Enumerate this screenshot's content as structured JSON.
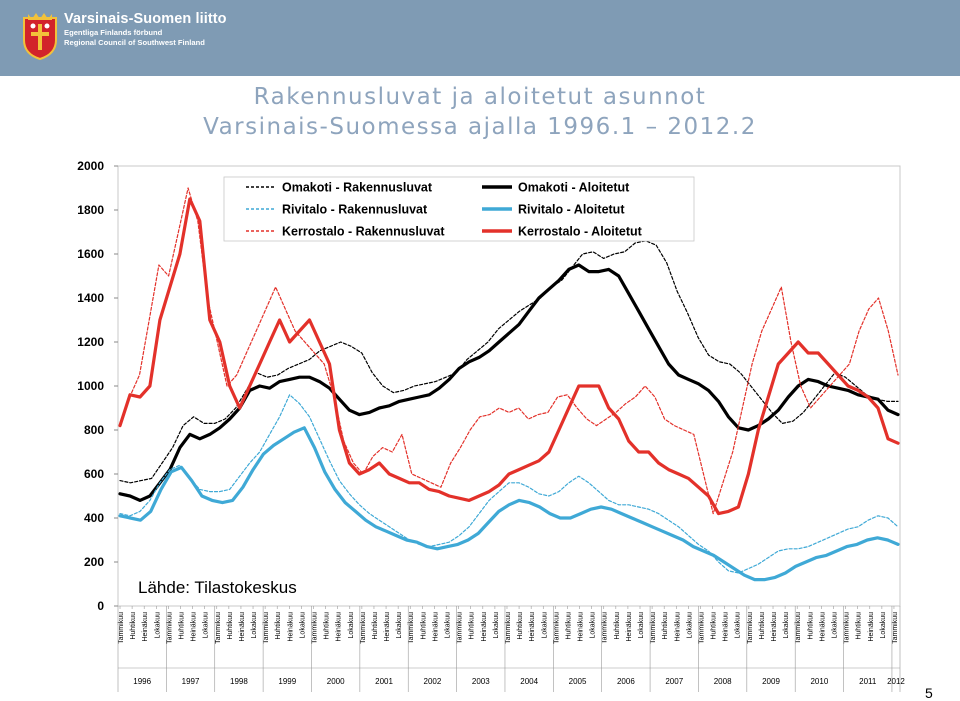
{
  "header": {
    "org_name": "Varsinais-Suomen liitto",
    "org_name_sv": "Egentliga Finlands förbund",
    "org_name_en": "Regional Council of Southwest Finland",
    "bar_color": "#7f9bb4",
    "logo_icon": "coat-of-arms-icon"
  },
  "slide": {
    "title_line1": "Rakennusluvat ja aloitetut asunnot",
    "title_line2": "Varsinais-Suomessa ajalla 1996.1 – 2012.2",
    "title_color": "#8ea4bd",
    "source_note": "Lähde: Tilastokeskus",
    "page_number": "5"
  },
  "chart_data": {
    "type": "line",
    "ylim": [
      0,
      2000
    ],
    "y_ticks": [
      "0",
      "200",
      "400",
      "600",
      "800",
      "1000",
      "1200",
      "1400",
      "1600",
      "1800",
      "2000"
    ],
    "grid": false,
    "legend_position": "top",
    "month_tick_labels": [
      "Tammikuu",
      "Huhtikuu",
      "Heinäkuu",
      "Lokakuu"
    ],
    "years": [
      "1996",
      "1997",
      "1998",
      "1999",
      "2000",
      "2001",
      "2002",
      "2003",
      "2004",
      "2005",
      "2006",
      "2007",
      "2008",
      "2009",
      "2010",
      "2011",
      "2012"
    ],
    "x_start": "1996-01",
    "x_end": "2012-02",
    "series": [
      {
        "name": "Omakoti - Rakennusluvat",
        "color": "#000000",
        "style": "dashed",
        "values": [
          570,
          560,
          570,
          580,
          650,
          720,
          820,
          860,
          830,
          830,
          850,
          900,
          980,
          1060,
          1040,
          1050,
          1080,
          1100,
          1120,
          1160,
          1180,
          1200,
          1180,
          1150,
          1060,
          1000,
          970,
          980,
          1000,
          1010,
          1020,
          1040,
          1060,
          1120,
          1160,
          1200,
          1260,
          1300,
          1340,
          1370,
          1400,
          1450,
          1480,
          1540,
          1600,
          1610,
          1580,
          1600,
          1610,
          1650,
          1660,
          1640,
          1560,
          1430,
          1330,
          1220,
          1140,
          1110,
          1100,
          1060,
          1000,
          940,
          880,
          830,
          840,
          880,
          940,
          1000,
          1060,
          1040,
          1000,
          960,
          940,
          930,
          930
        ]
      },
      {
        "name": "Omakoti - Aloitetut",
        "color": "#000000",
        "style": "solid",
        "values": [
          510,
          500,
          480,
          500,
          560,
          620,
          720,
          780,
          760,
          780,
          810,
          850,
          900,
          980,
          1000,
          990,
          1020,
          1030,
          1040,
          1040,
          1020,
          990,
          940,
          890,
          870,
          880,
          900,
          910,
          930,
          940,
          950,
          960,
          990,
          1030,
          1080,
          1110,
          1130,
          1160,
          1200,
          1240,
          1280,
          1340,
          1400,
          1440,
          1480,
          1530,
          1550,
          1520,
          1520,
          1530,
          1500,
          1420,
          1340,
          1260,
          1180,
          1100,
          1050,
          1030,
          1010,
          980,
          930,
          860,
          810,
          800,
          820,
          850,
          890,
          950,
          1000,
          1030,
          1020,
          1000,
          990,
          980,
          960,
          950,
          940,
          890,
          870
        ]
      },
      {
        "name": "Rivitalo - Rakennusluvat",
        "color": "#3fa9d6",
        "style": "dashed",
        "values": [
          420,
          410,
          430,
          480,
          560,
          620,
          640,
          580,
          530,
          520,
          520,
          530,
          590,
          650,
          700,
          780,
          860,
          960,
          920,
          860,
          760,
          660,
          570,
          510,
          460,
          420,
          390,
          360,
          330,
          300,
          280,
          270,
          280,
          290,
          320,
          360,
          420,
          480,
          520,
          560,
          560,
          540,
          510,
          500,
          520,
          560,
          590,
          560,
          520,
          480,
          460,
          460,
          450,
          440,
          420,
          390,
          360,
          320,
          280,
          250,
          200,
          160,
          150,
          170,
          190,
          220,
          250,
          260,
          260,
          270,
          290,
          310,
          330,
          350,
          360,
          390,
          410,
          400,
          360
        ]
      },
      {
        "name": "Rivitalo - Aloitetut",
        "color": "#3fa9d6",
        "style": "solid",
        "values": [
          410,
          400,
          390,
          430,
          530,
          610,
          630,
          570,
          500,
          480,
          470,
          480,
          540,
          620,
          690,
          730,
          760,
          790,
          810,
          720,
          610,
          530,
          470,
          430,
          390,
          360,
          340,
          320,
          300,
          290,
          270,
          260,
          270,
          280,
          300,
          330,
          380,
          430,
          460,
          480,
          470,
          450,
          420,
          400,
          400,
          420,
          440,
          450,
          440,
          420,
          400,
          380,
          360,
          340,
          320,
          300,
          270,
          250,
          230,
          200,
          170,
          140,
          120,
          120,
          130,
          150,
          180,
          200,
          220,
          230,
          250,
          270,
          280,
          300,
          310,
          300,
          280
        ]
      },
      {
        "name": "Kerrostalo - Rakennusluvat",
        "color": "#e3312a",
        "style": "dashed",
        "values": [
          820,
          950,
          1050,
          1300,
          1550,
          1500,
          1700,
          1900,
          1750,
          1400,
          1200,
          1000,
          1050,
          1150,
          1250,
          1350,
          1450,
          1350,
          1250,
          1200,
          1150,
          1100,
          950,
          750,
          650,
          600,
          680,
          720,
          700,
          780,
          600,
          580,
          560,
          540,
          650,
          720,
          800,
          860,
          870,
          900,
          880,
          900,
          850,
          870,
          880,
          950,
          960,
          900,
          850,
          820,
          850,
          880,
          920,
          950,
          1000,
          950,
          850,
          820,
          800,
          780,
          600,
          420,
          560,
          700,
          900,
          1100,
          1250,
          1350,
          1450,
          1200,
          1000,
          900,
          950,
          1000,
          1050,
          1100,
          1250,
          1350,
          1400,
          1250,
          1050
        ]
      },
      {
        "name": "Kerrostalo - Aloitetut",
        "color": "#e3312a",
        "style": "solid",
        "values": [
          820,
          960,
          950,
          1000,
          1300,
          1450,
          1600,
          1850,
          1750,
          1300,
          1200,
          1000,
          900,
          1000,
          1100,
          1200,
          1300,
          1200,
          1250,
          1300,
          1200,
          1100,
          800,
          650,
          600,
          620,
          650,
          600,
          580,
          560,
          560,
          530,
          520,
          500,
          490,
          480,
          500,
          520,
          550,
          600,
          620,
          640,
          660,
          700,
          800,
          900,
          1000,
          1000,
          1000,
          900,
          850,
          750,
          700,
          700,
          650,
          620,
          600,
          580,
          540,
          500,
          420,
          430,
          450,
          600,
          800,
          950,
          1100,
          1150,
          1200,
          1150,
          1150,
          1100,
          1050,
          1000,
          980,
          950,
          900,
          760,
          740
        ]
      }
    ]
  }
}
